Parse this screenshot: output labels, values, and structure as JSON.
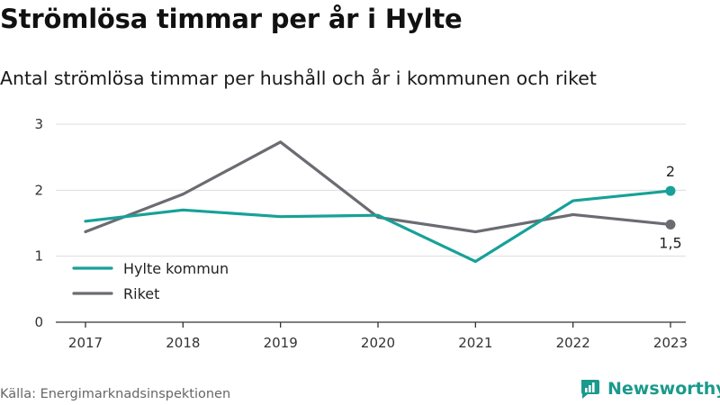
{
  "title": "Strömlösa timmar per år i Hylte",
  "subtitle": "Antal strömlösa timmar per hushåll och år i kommunen och riket",
  "source": "Källa: Energimarknadsinspektionen",
  "brand": "Newsworthy",
  "colors": {
    "hylte": "#17a198",
    "riket": "#6b6b72",
    "grid": "#dddddd",
    "brand": "#1a9a8c"
  },
  "chart_data": {
    "type": "line",
    "x": [
      "2017",
      "2018",
      "2019",
      "2020",
      "2021",
      "2022",
      "2023"
    ],
    "y_ticks": [
      "0",
      "1",
      "2",
      "3"
    ],
    "ylim": [
      0,
      3
    ],
    "grid": true,
    "legend_position": "bottom-left",
    "series": [
      {
        "name": "Hylte kommun",
        "values": [
          1.53,
          1.7,
          1.6,
          1.62,
          0.92,
          1.84,
          1.99
        ],
        "end_label": "2"
      },
      {
        "name": "Riket",
        "values": [
          1.37,
          1.94,
          2.73,
          1.59,
          1.37,
          1.63,
          1.48
        ],
        "end_label": "1,5"
      }
    ]
  }
}
